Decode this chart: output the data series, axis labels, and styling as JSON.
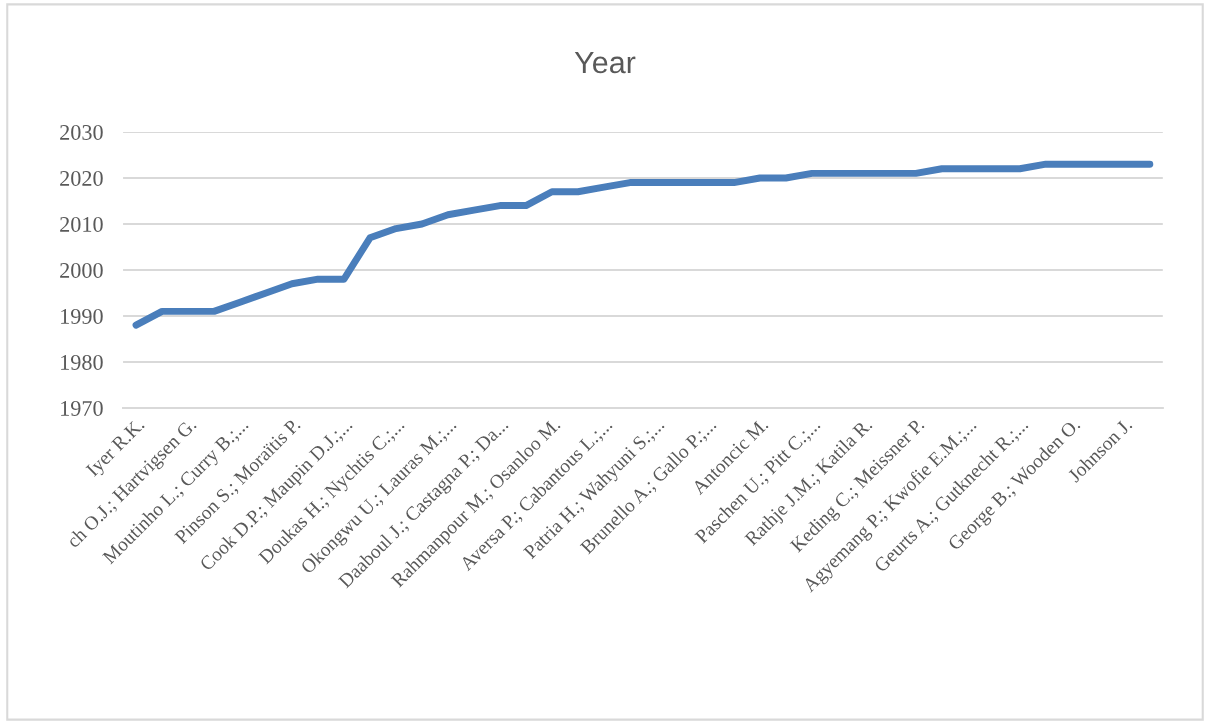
{
  "chart_data": {
    "type": "line",
    "title": "Year",
    "categories": [
      "Iyer R.K.",
      null,
      "ch O.J.; Hartvigsen G.",
      null,
      "Moutinho L.; Curry B.;...",
      null,
      "Pinson S.; Moraïtis P.",
      null,
      "Cook D.P.; Maupin D.J.;...",
      null,
      "Doukas H.; Nychtis C.;...",
      null,
      "Okongwu U.; Lauras M.;...",
      null,
      "Daaboul J.; Castagna P.; Da...",
      null,
      "Rahmanpour M.; Osanloo M.",
      null,
      "Aversa P.; Cabantous L.;...",
      null,
      "Patria H.; Wahyuni S.;...",
      null,
      "Brunello A.; Gallo P.;...",
      null,
      "Antoncic M.",
      null,
      "Paschen U.; Pitt C.;...",
      null,
      "Rathje J.M.; Katila R.",
      null,
      "Keding C.; Meissner P.",
      null,
      "Agyemang P.; Kwofie E.M.;...",
      null,
      "Geurts A.; Gutknecht R.;...",
      null,
      "George B.; Wooden O.",
      null,
      "Johnson J.",
      null
    ],
    "series": [
      {
        "color": "#4a7ebb",
        "values": [
          1988,
          1991,
          1991,
          1991,
          1993,
          1995,
          1997,
          1998,
          1998,
          2007,
          2009,
          2010,
          2012,
          2013,
          2014,
          2014,
          2017,
          2017,
          2018,
          2019,
          2019,
          2019,
          2019,
          2019,
          2020,
          2020,
          2021,
          2021,
          2021,
          2021,
          2021,
          2022,
          2022,
          2022,
          2022,
          2023,
          2023,
          2023,
          2023,
          2023
        ]
      }
    ],
    "ylim": [
      1970,
      2030
    ],
    "yticks": [
      1970,
      1980,
      1990,
      2000,
      2010,
      2020,
      2030
    ],
    "grid": "y",
    "marker": "none",
    "line_style": "solid"
  }
}
